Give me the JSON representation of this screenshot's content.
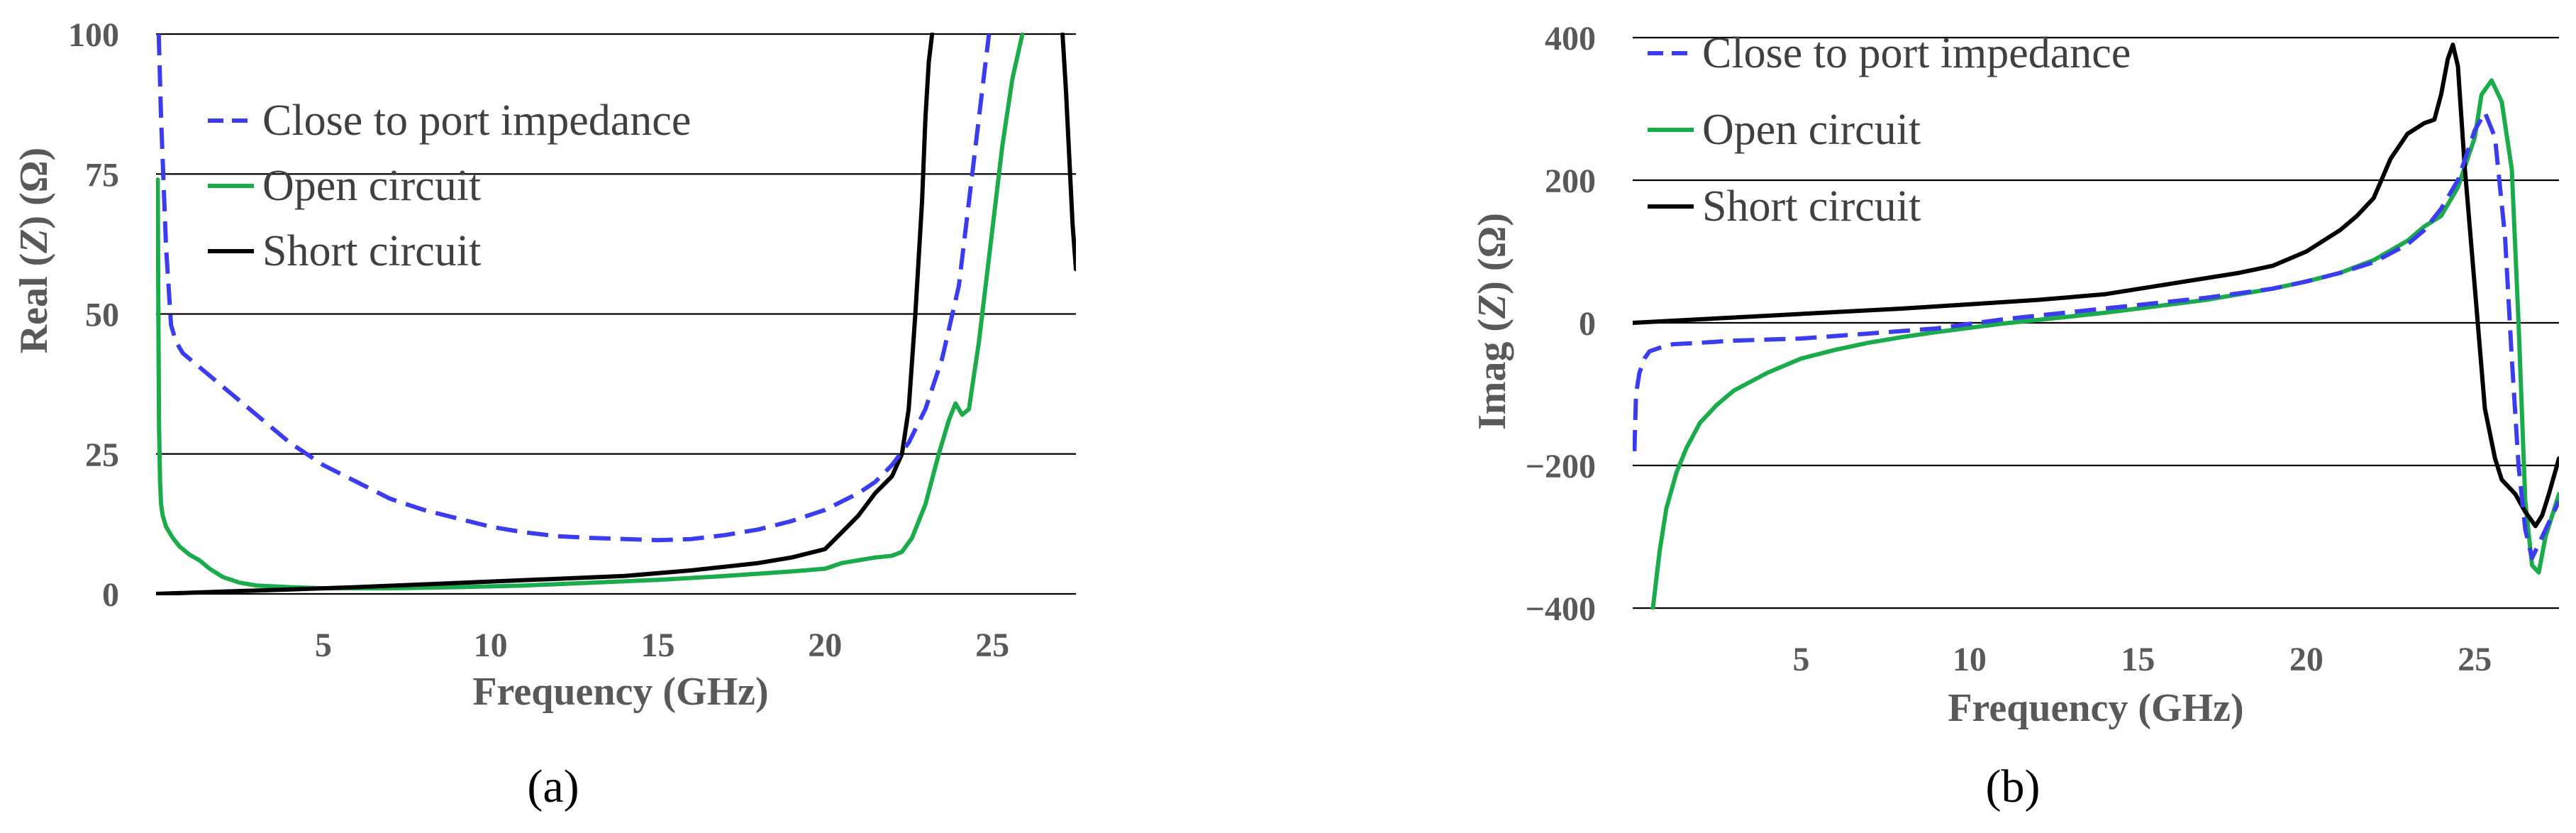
{
  "colors": {
    "close": "#3b3bef",
    "open": "#1aab4b",
    "short": "#000000",
    "grid": "#000000",
    "axis_text": "#595959"
  },
  "chart_data": [
    {
      "type": "line",
      "panel_label": "(a)",
      "ylabel_parts": [
        "Real (",
        "Z",
        ") (Ω)"
      ],
      "xlabel": "Frequency (GHz)",
      "xlim": [
        0,
        27.5
      ],
      "ylim": [
        0,
        100
      ],
      "xticks": [
        5,
        10,
        15,
        20,
        25
      ],
      "yticks": [
        0,
        25,
        50,
        75,
        100
      ],
      "grid": "horizontal",
      "legend_position": "top-left",
      "series": [
        {
          "name": "Close to port impedance",
          "style": "dashed",
          "color_key": "close",
          "x": [
            0.08,
            0.15,
            0.3,
            0.45,
            0.6,
            0.8,
            1.2,
            2,
            3,
            4,
            5,
            6,
            7,
            8,
            9,
            10,
            11,
            12,
            13,
            14,
            15,
            16,
            17,
            18,
            19,
            20,
            21,
            21.5,
            22,
            22.5,
            23,
            23.5,
            24,
            24.3,
            24.6,
            24.9
          ],
          "y": [
            100,
            85,
            62,
            48,
            45,
            43,
            41,
            37,
            32,
            27,
            23,
            20,
            17,
            15,
            13.5,
            12,
            11,
            10.3,
            10,
            9.8,
            9.6,
            9.8,
            10.5,
            11.5,
            13,
            15,
            18,
            20,
            23,
            27,
            33,
            42,
            55,
            70,
            85,
            100
          ]
        },
        {
          "name": "Open circuit",
          "style": "solid",
          "color_key": "open",
          "x": [
            0.05,
            0.07,
            0.09,
            0.12,
            0.15,
            0.2,
            0.3,
            0.5,
            0.7,
            1.0,
            1.3,
            1.6,
            2.0,
            2.5,
            3,
            4,
            5,
            7,
            9,
            11,
            13,
            15,
            17,
            19,
            20,
            20.5,
            21,
            21.5,
            22,
            22.3,
            22.6,
            23,
            23.4,
            23.7,
            23.9,
            24.1,
            24.3,
            24.6,
            25,
            25.3,
            25.6,
            25.9
          ],
          "y": [
            74,
            50,
            30,
            20,
            16,
            14,
            12,
            10,
            8.5,
            7,
            6,
            4.5,
            3,
            2,
            1.5,
            1.2,
            1,
            1,
            1.2,
            1.5,
            2,
            2.5,
            3.2,
            4,
            4.5,
            5.5,
            6,
            6.5,
            6.8,
            7.5,
            10,
            16,
            25,
            31,
            34,
            32,
            33,
            45,
            65,
            80,
            92,
            100
          ]
        },
        {
          "name": "Short circuit",
          "style": "solid",
          "color_key": "short",
          "x": [
            0,
            2,
            4,
            6,
            8,
            10,
            12,
            14,
            16,
            18,
            19,
            20,
            20.5,
            21,
            21.5,
            22,
            22.3,
            22.5,
            22.7,
            22.9,
            23.0,
            23.1,
            23.2
          ],
          "y": [
            0,
            0.4,
            0.8,
            1.2,
            1.7,
            2.2,
            2.7,
            3.2,
            4.2,
            5.5,
            6.5,
            8,
            11,
            14,
            18,
            21,
            25,
            33,
            50,
            70,
            85,
            95,
            100
          ],
          "x2": [
            27.1,
            27.2,
            27.3,
            27.4,
            27.5
          ],
          "y2": [
            100,
            90,
            78,
            66,
            58
          ]
        }
      ]
    },
    {
      "type": "line",
      "panel_label": "(b)",
      "ylabel_parts": [
        "Imag (",
        "Z",
        ") (Ω)"
      ],
      "xlabel": "Frequency (GHz)",
      "xlim": [
        0,
        27.5
      ],
      "ylim": [
        -400,
        400
      ],
      "xticks": [
        5,
        10,
        15,
        20,
        25
      ],
      "yticks": [
        400,
        200,
        0,
        -200,
        -400
      ],
      "ytick_labels": [
        "400",
        "200",
        "0",
        "−200",
        "−400"
      ],
      "grid": "horizontal",
      "legend_position": "top-left",
      "series": [
        {
          "name": "Close to port impedance",
          "style": "dashed",
          "color_key": "close",
          "x": [
            0.05,
            0.1,
            0.2,
            0.35,
            0.5,
            0.8,
            1.2,
            2,
            3,
            5,
            7,
            9,
            11,
            13,
            15,
            17,
            19,
            20,
            21,
            22,
            23,
            23.5,
            24,
            24.5,
            25,
            25.3,
            25.6,
            25.9,
            26.1,
            26.3,
            26.5,
            26.7,
            27,
            27.2,
            27.5
          ],
          "y": [
            -180,
            -100,
            -70,
            -50,
            -40,
            -35,
            -30,
            -28,
            -25,
            -22,
            -15,
            -8,
            5,
            15,
            25,
            35,
            48,
            58,
            70,
            85,
            110,
            130,
            160,
            200,
            270,
            295,
            260,
            120,
            -50,
            -200,
            -290,
            -330,
            -300,
            -280,
            -250
          ]
        },
        {
          "name": "Open circuit",
          "style": "solid",
          "color_key": "open",
          "x": [
            0.6,
            0.8,
            1.0,
            1.3,
            1.6,
            2,
            2.5,
            3,
            4,
            5,
            6,
            7,
            8,
            9,
            10,
            11,
            12,
            13,
            14,
            15,
            16,
            17,
            18,
            19,
            20,
            21,
            22,
            23,
            23.5,
            24,
            24.5,
            25,
            25.2,
            25.5,
            25.8,
            26.1,
            26.3,
            26.5,
            26.7,
            26.9,
            27.1,
            27.3,
            27.5
          ],
          "y": [
            -400,
            -320,
            -260,
            -210,
            -175,
            -140,
            -115,
            -95,
            -70,
            -50,
            -38,
            -28,
            -20,
            -13,
            -7,
            -1,
            4,
            9,
            14,
            20,
            26,
            32,
            40,
            48,
            58,
            70,
            88,
            115,
            135,
            150,
            190,
            260,
            320,
            340,
            310,
            215,
            0,
            -250,
            -340,
            -350,
            -300,
            -270,
            -240
          ]
        },
        {
          "name": "Short circuit",
          "style": "solid",
          "color_key": "short",
          "x": [
            0,
            2,
            4,
            6,
            8,
            10,
            12,
            14,
            16,
            18,
            19,
            20,
            21,
            21.5,
            22,
            22.5,
            23,
            23.5,
            23.8,
            24.0,
            24.2,
            24.35,
            24.5,
            24.7,
            25,
            25.3,
            25.6,
            25.8,
            26.0,
            26.2,
            26.5,
            26.8,
            27.0,
            27.2,
            27.5
          ],
          "y": [
            0,
            5,
            10,
            15,
            20,
            26,
            32,
            40,
            55,
            70,
            80,
            100,
            130,
            150,
            175,
            230,
            265,
            280,
            285,
            320,
            370,
            390,
            360,
            220,
            50,
            -120,
            -190,
            -220,
            -230,
            -240,
            -265,
            -285,
            -270,
            -240,
            -190
          ]
        }
      ]
    }
  ]
}
